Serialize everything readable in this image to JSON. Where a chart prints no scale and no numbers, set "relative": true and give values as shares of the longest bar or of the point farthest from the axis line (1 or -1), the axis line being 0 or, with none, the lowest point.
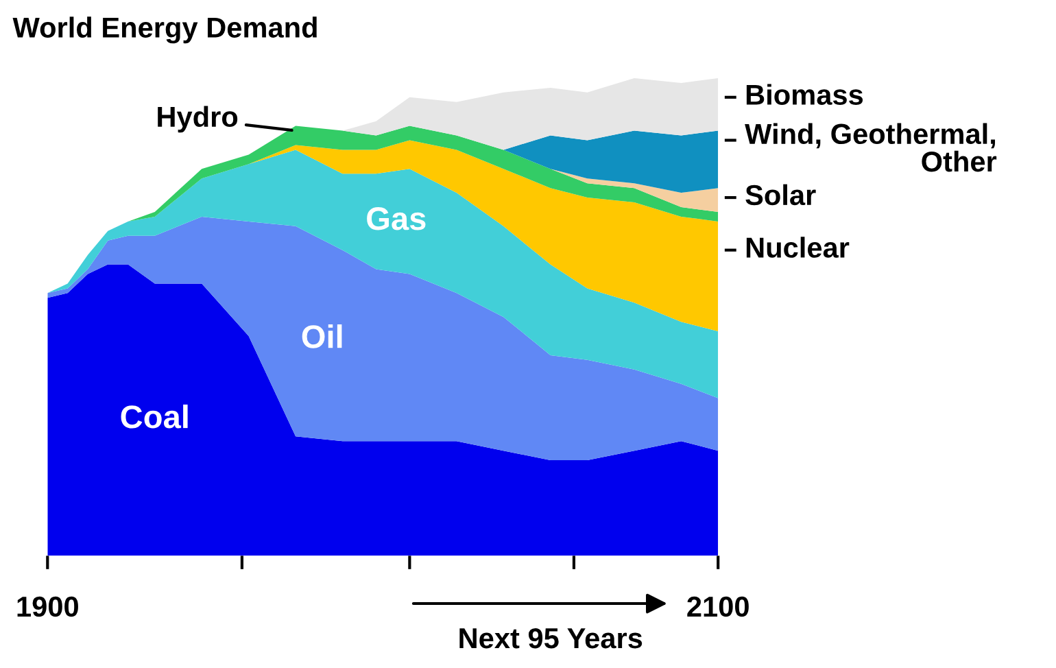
{
  "chart_data": {
    "type": "area",
    "stacked": true,
    "relative": true,
    "title": "World Energy Demand",
    "x": [
      1900,
      1906,
      1912,
      1918,
      1924,
      1932,
      1946,
      1960,
      1974,
      1988,
      1998,
      2008,
      2022,
      2036,
      2050,
      2061,
      2075,
      2089,
      2100
    ],
    "xlim": [
      1900,
      2100
    ],
    "xticks": [
      1900,
      {
        "value": 1958,
        "label": null
      },
      {
        "value": 2008,
        "label": null
      },
      {
        "value": 2057,
        "label": null
      },
      2100
    ],
    "series": [
      {
        "name": "Coal",
        "color": "#0000ee",
        "values": [
          0.54,
          0.55,
          0.59,
          0.61,
          0.61,
          0.57,
          0.57,
          0.46,
          0.25,
          0.24,
          0.24,
          0.24,
          0.24,
          0.22,
          0.2,
          0.2,
          0.22,
          0.24,
          0.22
        ]
      },
      {
        "name": "Oil",
        "color": "#6088f5",
        "values": [
          0.01,
          0.01,
          0.01,
          0.05,
          0.06,
          0.1,
          0.14,
          0.24,
          0.44,
          0.4,
          0.36,
          0.35,
          0.31,
          0.28,
          0.22,
          0.21,
          0.17,
          0.12,
          0.11
        ]
      },
      {
        "name": "Gas",
        "color": "#42cfd8",
        "values": [
          0,
          0.01,
          0.03,
          0.02,
          0.03,
          0.04,
          0.08,
          0.12,
          0.16,
          0.16,
          0.2,
          0.22,
          0.21,
          0.19,
          0.19,
          0.15,
          0.14,
          0.13,
          0.14
        ]
      },
      {
        "name": "Nuclear",
        "color": "#ffc800",
        "values": [
          null,
          null,
          null,
          null,
          null,
          null,
          null,
          0,
          0.01,
          0.05,
          0.05,
          0.06,
          0.09,
          0.12,
          0.16,
          0.19,
          0.21,
          0.22,
          0.23
        ]
      },
      {
        "name": "Hydro",
        "color": "#33cc66",
        "values": [
          null,
          null,
          null,
          null,
          0,
          0.01,
          0.02,
          0.02,
          0.04,
          0.04,
          0.03,
          0.03,
          0.03,
          0.04,
          0.04,
          0.03,
          0.03,
          0.02,
          0.02
        ]
      },
      {
        "name": "Solar",
        "color": "#f5cfa0",
        "values": [
          null,
          null,
          null,
          null,
          null,
          null,
          null,
          null,
          null,
          null,
          null,
          null,
          null,
          null,
          0,
          0.01,
          0.01,
          0.03,
          0.05
        ]
      },
      {
        "name": "Wind, Geothermal,\nOther",
        "color": "#1090c0",
        "values": [
          null,
          null,
          null,
          null,
          null,
          null,
          null,
          null,
          null,
          null,
          null,
          null,
          null,
          0,
          0.07,
          0.08,
          0.11,
          0.12,
          0.12
        ]
      },
      {
        "name": "Biomass",
        "color": "#e6e6e6",
        "values": [
          null,
          null,
          null,
          null,
          null,
          null,
          null,
          null,
          null,
          0,
          0.03,
          0.06,
          0.07,
          0.12,
          0.1,
          0.1,
          0.11,
          0.11,
          0.11
        ]
      }
    ],
    "annotations": [
      "Next 95 Years"
    ],
    "grid": false,
    "legend": false
  }
}
